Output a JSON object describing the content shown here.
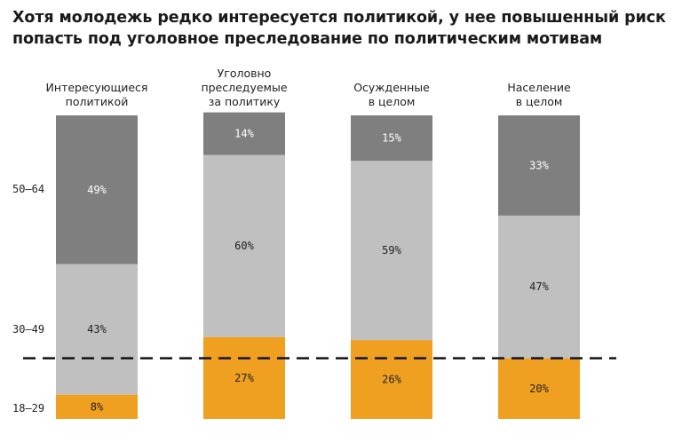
{
  "title": {
    "line1": "Хотя молодежь редко интересуется политикой, у нее повышенный риск",
    "line2": "попасть под уголовное преследование по политическим мотивам"
  },
  "age_groups": [
    "50–64",
    "30–49",
    "18–29"
  ],
  "colors": {
    "age_50_64": "#7f7f7f",
    "age_30_49": "#c0c0c0",
    "age_18_29": "#f0a020"
  },
  "chart_data": {
    "type": "bar",
    "stacked": true,
    "orientation": "vertical",
    "categories": [
      [
        "Интересующиеся",
        "политикой"
      ],
      [
        "Уголовно",
        "преследуемые",
        "за политику"
      ],
      [
        "Осужденные",
        "в целом"
      ],
      [
        "Население",
        "в целом"
      ]
    ],
    "series": [
      {
        "name": "18–29",
        "values": [
          8,
          27,
          26,
          20
        ],
        "labels": [
          "8%",
          "27%",
          "26%",
          "20%"
        ],
        "color": "#f0a020"
      },
      {
        "name": "30–49",
        "values": [
          43,
          60,
          59,
          47
        ],
        "labels": [
          "43%",
          "60%",
          "59%",
          "47%"
        ],
        "color": "#c0c0c0"
      },
      {
        "name": "50–64",
        "values": [
          49,
          14,
          15,
          33
        ],
        "labels": [
          "49%",
          "14%",
          "15%",
          "33%"
        ],
        "color": "#7f7f7f"
      }
    ],
    "reference_line": {
      "style": "dashed",
      "value": 20
    },
    "ylim": [
      0,
      100
    ]
  }
}
